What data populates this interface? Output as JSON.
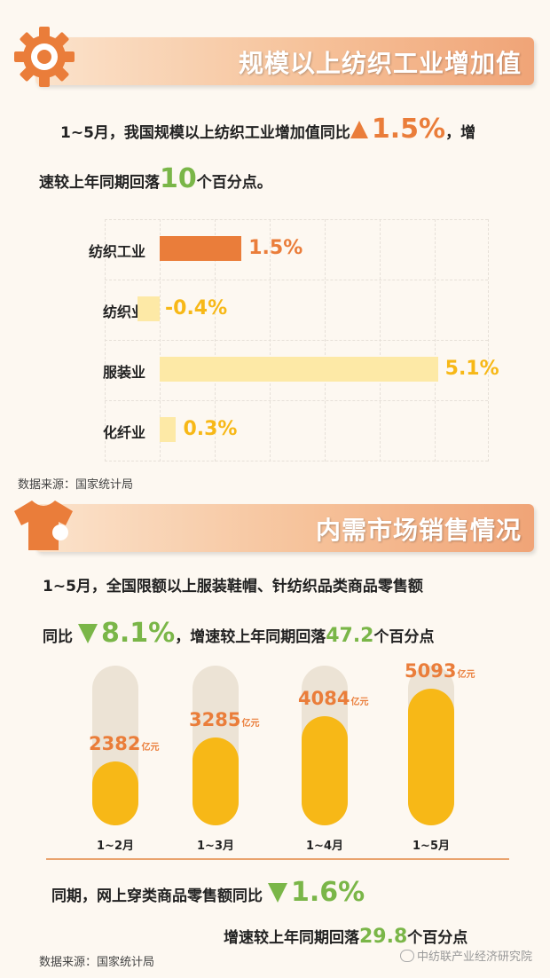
{
  "section1": {
    "title": "规模以上纺织工业增加值",
    "para1_a": "1~5月，我国规模以上纺织工业增加值同比",
    "para1_value": "1.5%",
    "para1_b": "，增",
    "para2_a": "速较上年同期回落",
    "para2_value": "10",
    "para2_b": "个百分点。",
    "source": "数据来源：国家统计局"
  },
  "section2": {
    "title": "内需市场销售情况",
    "para1": "1~5月，全国限额以上服装鞋帽、针纺织品类商品零售额",
    "para2_a": "同比",
    "para2_value": "8.1%",
    "para2_b": "，增速较上年同期回落",
    "para2_drop": "47.2",
    "para2_c": "个百分点",
    "online_a": "同期，网上穿类商品零售额同比",
    "online_value": "1.6%",
    "online2_a": "增速较上年同期回落",
    "online2_value": "29.8",
    "online2_b": "个百分点",
    "source": "数据来源：国家统计局"
  },
  "watermark": "中纺联产业经济研究院",
  "colors": {
    "orange": "#ea7d3a",
    "light_yellow": "#fde9a6",
    "gold": "#f7b817",
    "green": "#7ab648",
    "pill_track": "#ece3d5"
  },
  "icons": {
    "section1": "gear-icon",
    "section2": "shirt-icon",
    "up": "triangle-up-icon",
    "down": "triangle-down-icon"
  },
  "chart_data": [
    {
      "type": "bar",
      "orientation": "horizontal",
      "categories": [
        "纺织工业",
        "纺织业",
        "服装业",
        "化纤业"
      ],
      "values": [
        1.5,
        -0.4,
        5.1,
        0.3
      ],
      "value_labels": [
        "1.5%",
        "-0.4%",
        "5.1%",
        "0.3%"
      ],
      "xlim": [
        -0.4,
        5.6
      ],
      "grid": true
    },
    {
      "type": "bar",
      "orientation": "vertical",
      "categories": [
        "1~2月",
        "1~3月",
        "1~4月",
        "1~5月"
      ],
      "values": [
        2382,
        3285,
        4084,
        5093
      ],
      "unit": "亿元",
      "ylim": [
        0,
        5093
      ]
    }
  ]
}
